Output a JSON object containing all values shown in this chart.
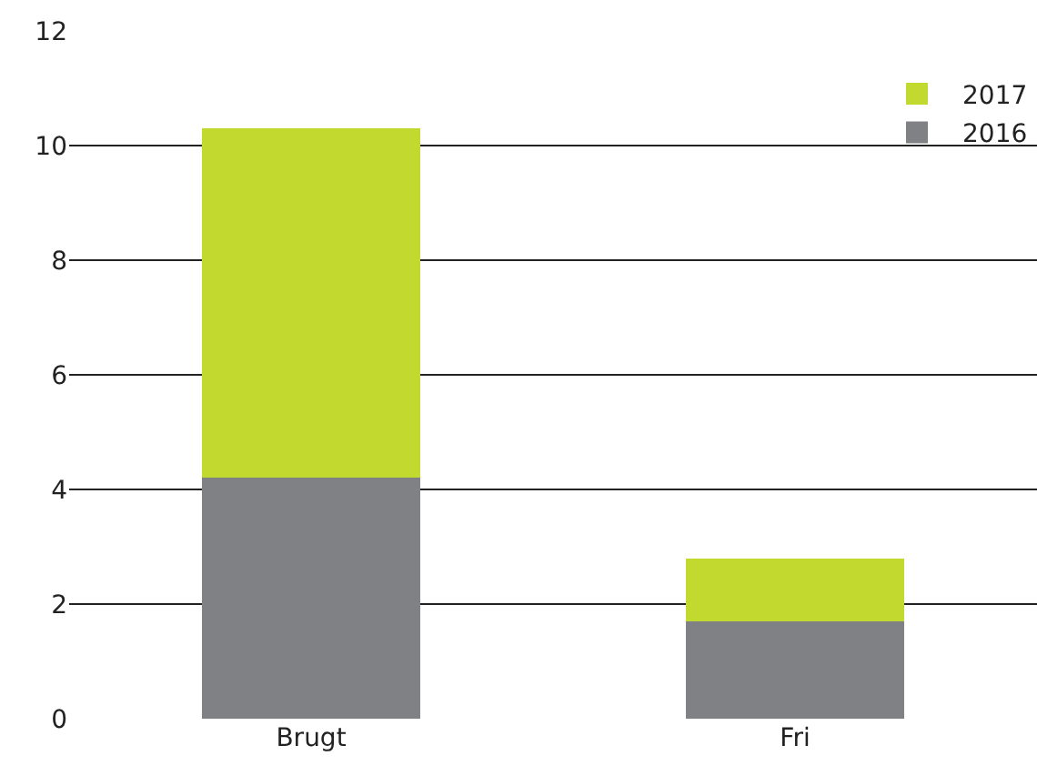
{
  "chart_data": {
    "type": "bar",
    "stacked": true,
    "categories": [
      "Brugt",
      "Fri"
    ],
    "series": [
      {
        "name": "2016",
        "color": "#808184",
        "values": [
          4.2,
          1.7
        ]
      },
      {
        "name": "2017",
        "color": "#c2d92f",
        "values": [
          6.1,
          1.1
        ]
      }
    ],
    "ylim": [
      0,
      12
    ],
    "yticks": [
      0,
      2,
      4,
      6,
      8,
      10,
      12
    ],
    "grid": "y",
    "legend": "top right"
  }
}
